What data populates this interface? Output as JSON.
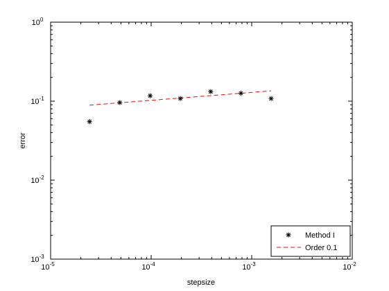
{
  "chart_data": {
    "type": "scatter",
    "xlabel": "stepsize",
    "ylabel": "error",
    "x_scale": "log",
    "y_scale": "log",
    "xlim": [
      1e-05,
      0.01
    ],
    "ylim": [
      0.001,
      1
    ],
    "grid": false,
    "legend_position": "bottom-right",
    "x_ticks": [
      {
        "base": "10",
        "exp": "-5",
        "value": 1e-05
      },
      {
        "base": "10",
        "exp": "-4",
        "value": 0.0001
      },
      {
        "base": "10",
        "exp": "-3",
        "value": 0.001
      },
      {
        "base": "10",
        "exp": "-2",
        "value": 0.01
      }
    ],
    "y_ticks": [
      {
        "base": "10",
        "exp": "-3",
        "value": 0.001
      },
      {
        "base": "10",
        "exp": "-2",
        "value": 0.01
      },
      {
        "base": "10",
        "exp": "-1",
        "value": 0.1
      },
      {
        "base": "10",
        "exp": "0",
        "value": 1
      }
    ],
    "series": [
      {
        "name": "Method I",
        "style": "markers-asterisk",
        "color": "#000000",
        "x": [
          2.44e-05,
          4.88e-05,
          9.77e-05,
          0.000195,
          0.000391,
          0.000781,
          0.00156
        ],
        "y": [
          0.055,
          0.096,
          0.117,
          0.108,
          0.132,
          0.126,
          0.108
        ]
      },
      {
        "name": "Order 0.1",
        "style": "dashed-line",
        "color": "#ff0000",
        "x": [
          2.44e-05,
          4.88e-05,
          9.77e-05,
          0.000195,
          0.000391,
          0.000781,
          0.00156
        ],
        "y": [
          0.089,
          0.0955,
          0.1023,
          0.1097,
          0.1175,
          0.126,
          0.135
        ]
      }
    ]
  }
}
